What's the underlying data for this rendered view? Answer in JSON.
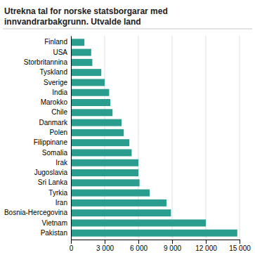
{
  "chart_data": {
    "type": "bar",
    "orientation": "horizontal",
    "title": "Utrekna tal for norske statsborgarar med innvandrarbakgrunn. Utvalde land",
    "categories": [
      "Finland",
      "USA",
      "Storbritannina",
      "Tyskland",
      "Sverige",
      "India",
      "Marokko",
      "Chile",
      "Danmark",
      "Polen",
      "Filippinane",
      "Somalia",
      "Irak",
      "Jugoslavia",
      "Sri Lanka",
      "Tyrkia",
      "Iran",
      "Bosnia-Hercegovina",
      "Vietnam",
      "Pakistan"
    ],
    "values": [
      1200,
      1800,
      1900,
      2700,
      3000,
      3400,
      3500,
      3700,
      4500,
      4700,
      5200,
      5400,
      6000,
      6000,
      6100,
      7000,
      8500,
      8900,
      12000,
      14800
    ],
    "color": "#2a9d8f",
    "xlim": [
      0,
      15000
    ],
    "xticks": [
      0,
      {
        "value": 3000,
        "label": "3 000"
      },
      {
        "value": 6000,
        "label": "6 000"
      },
      {
        "value": 9000,
        "label": "9 000"
      },
      {
        "value": 12000,
        "label": "12 000"
      },
      {
        "value": 15000,
        "label": "15 000"
      }
    ],
    "grid": true
  }
}
